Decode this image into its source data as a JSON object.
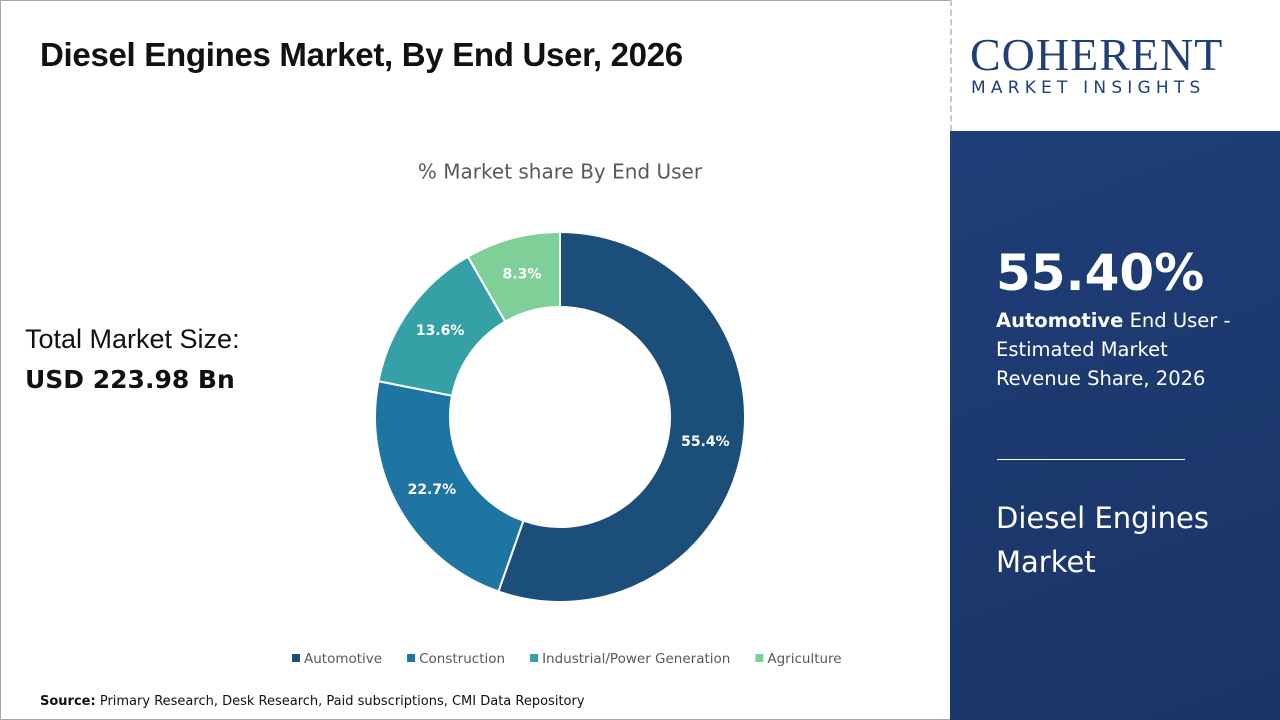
{
  "chart_data": {
    "type": "donut",
    "title": "Diesel Engines Market, By End User, 2026",
    "subtitle": "% Market share By End User",
    "categories": [
      "Automotive",
      "Construction",
      "Industrial/Power Generation",
      "Agriculture"
    ],
    "values": [
      55.4,
      22.7,
      13.6,
      8.3
    ],
    "value_labels": [
      "55.4%",
      "22.7%",
      "13.6%",
      "8.3%"
    ],
    "colors": [
      "#1b4e79",
      "#1f75a1",
      "#35a1a7",
      "#7ecf98"
    ],
    "legend": "bottom"
  },
  "market_size": {
    "label": "Total Market Size:",
    "value": "USD 223.98 Bn"
  },
  "logo": {
    "name": "COHERENT",
    "tagline": "MARKET INSIGHTS"
  },
  "highlight": {
    "share": "55.40%",
    "segment": "Automotive",
    "description": "End User - Estimated Market Revenue Share, 2026",
    "market": "Diesel Engines Market"
  },
  "source": {
    "label": "Source:",
    "text": "Primary Research, Desk Research, Paid subscriptions, CMI Data Repository"
  }
}
